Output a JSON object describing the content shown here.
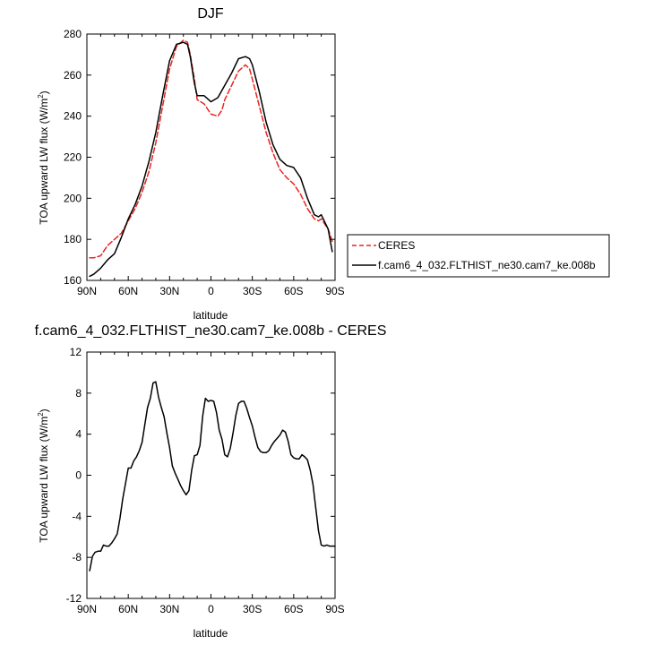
{
  "chart_data": [
    {
      "type": "line",
      "title": "DJF",
      "xlabel": "latitude",
      "ylabel_main": "TOA upward LW flux (W/m",
      "ylabel_sup": "2",
      "ylabel_close": ")",
      "xlim": [
        90,
        -90
      ],
      "ylim": [
        160,
        280
      ],
      "xticks": [
        90,
        60,
        30,
        0,
        -30,
        -60,
        -90
      ],
      "xtick_labels": [
        "90N",
        "60N",
        "30N",
        "0",
        "30S",
        "60S",
        "90S"
      ],
      "yticks": [
        160,
        180,
        200,
        220,
        240,
        260,
        280
      ],
      "ytick_labels": [
        "160",
        "180",
        "200",
        "220",
        "240",
        "260",
        "280"
      ],
      "legend_position": "right",
      "series": [
        {
          "name": "CERES",
          "color": "#e8251f",
          "dashed": true,
          "x": [
            88,
            85,
            80,
            75,
            70,
            65,
            60,
            55,
            50,
            45,
            40,
            35,
            30,
            25,
            20,
            17,
            15,
            12,
            10,
            5,
            0,
            -5,
            -8,
            -10,
            -15,
            -20,
            -25,
            -28,
            -30,
            -35,
            -40,
            -45,
            -50,
            -55,
            -60,
            -65,
            -70,
            -75,
            -78,
            -80,
            -85,
            -88
          ],
          "y": [
            171,
            171,
            172,
            177,
            180,
            183,
            189,
            195,
            203,
            213,
            227,
            245,
            263,
            274,
            277,
            276,
            270,
            258,
            248,
            246,
            241,
            240,
            243,
            248,
            255,
            262,
            265,
            263,
            258,
            245,
            232,
            222,
            214,
            210,
            207,
            202,
            195,
            190,
            189,
            190,
            185,
            179
          ]
        },
        {
          "name": "f.cam6_4_032.FLTHIST_ne30.cam7_ke.008b",
          "color": "#000000",
          "dashed": false,
          "x": [
            88,
            85,
            80,
            75,
            70,
            65,
            60,
            55,
            50,
            45,
            40,
            35,
            30,
            25,
            20,
            17,
            15,
            12,
            10,
            5,
            0,
            -5,
            -10,
            -15,
            -20,
            -25,
            -28,
            -30,
            -35,
            -40,
            -45,
            -50,
            -55,
            -60,
            -65,
            -70,
            -75,
            -78,
            -80,
            -85,
            -88
          ],
          "y": [
            162,
            163,
            166,
            170,
            173,
            181,
            190,
            197,
            206,
            218,
            232,
            250,
            267,
            275,
            276,
            275,
            269,
            256,
            250,
            250,
            247,
            249,
            255,
            261,
            268,
            269,
            268,
            265,
            252,
            237,
            226,
            219,
            216,
            215,
            210,
            200,
            192,
            191,
            192,
            185,
            174
          ]
        }
      ]
    },
    {
      "type": "line",
      "title": "f.cam6_4_032.FLTHIST_ne30.cam7_ke.008b - CERES",
      "xlabel": "latitude",
      "ylabel_main": "TOA upward LW flux (W/m",
      "ylabel_sup": "2",
      "ylabel_close": ")",
      "xlim": [
        90,
        -90
      ],
      "ylim": [
        -12,
        12
      ],
      "xticks": [
        90,
        60,
        30,
        0,
        -30,
        -60,
        -90
      ],
      "xtick_labels": [
        "90N",
        "60N",
        "30N",
        "0",
        "30S",
        "60S",
        "90S"
      ],
      "yticks": [
        -12,
        -8,
        -4,
        0,
        4,
        8,
        12
      ],
      "ytick_labels": [
        "-12",
        "-8",
        "-4",
        "0",
        "4",
        "8",
        "12"
      ],
      "series": [
        {
          "color": "#000000",
          "dashed": false,
          "x": [
            88,
            86,
            84,
            82,
            80,
            78,
            76,
            74,
            72,
            70,
            68,
            66,
            64,
            62,
            60,
            58,
            56,
            54,
            52,
            50,
            48,
            46,
            44,
            42,
            40,
            38,
            36,
            34,
            32,
            30,
            28,
            26,
            24,
            22,
            20,
            18,
            16,
            14,
            12,
            10,
            8,
            6,
            4,
            2,
            0,
            -2,
            -4,
            -6,
            -8,
            -10,
            -12,
            -14,
            -16,
            -18,
            -20,
            -22,
            -24,
            -26,
            -28,
            -30,
            -32,
            -34,
            -36,
            -38,
            -40,
            -42,
            -44,
            -46,
            -48,
            -50,
            -52,
            -54,
            -56,
            -58,
            -60,
            -62,
            -64,
            -66,
            -68,
            -70,
            -72,
            -74,
            -76,
            -78,
            -80,
            -82,
            -84,
            -86,
            -88,
            -90
          ],
          "y": [
            -9.3,
            -7.9,
            -7.5,
            -7.4,
            -7.4,
            -6.8,
            -6.9,
            -6.9,
            -6.6,
            -6.2,
            -5.7,
            -4.2,
            -2.3,
            -0.8,
            0.7,
            0.7,
            1.4,
            1.8,
            2.4,
            3.2,
            4.9,
            6.6,
            7.5,
            9.0,
            9.1,
            7.6,
            6.6,
            5.7,
            4.1,
            2.7,
            0.9,
            0.2,
            -0.4,
            -1.0,
            -1.5,
            -1.9,
            -1.5,
            0.5,
            1.9,
            2.0,
            2.9,
            5.8,
            7.5,
            7.2,
            7.3,
            7.2,
            6.1,
            4.4,
            3.5,
            2.0,
            1.8,
            2.6,
            4.1,
            5.8,
            7.0,
            7.2,
            7.2,
            6.5,
            5.6,
            4.8,
            3.7,
            2.7,
            2.3,
            2.2,
            2.2,
            2.4,
            2.9,
            3.3,
            3.6,
            3.9,
            4.4,
            4.2,
            3.3,
            2.0,
            1.7,
            1.6,
            1.6,
            2.0,
            1.8,
            1.5,
            0.5,
            -0.9,
            -3.2,
            -5.4,
            -6.8,
            -6.9,
            -6.8,
            -6.9,
            -6.9,
            -6.9
          ]
        }
      ]
    }
  ]
}
